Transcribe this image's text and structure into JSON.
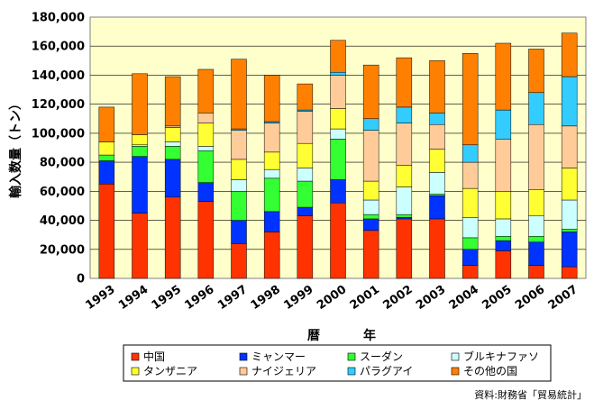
{
  "chart_data": {
    "type": "bar",
    "stacked": true,
    "ylabel": "輸入数量（トン）",
    "xlabel_left": "暦",
    "xlabel_right": "年",
    "ylim": [
      0,
      180000
    ],
    "yticks": [
      "0",
      "20,000",
      "40,000",
      "60,000",
      "80,000",
      "100,000",
      "120,000",
      "140,000",
      "160,000",
      "180,000"
    ],
    "categories": [
      "1993",
      "1994",
      "1995",
      "1996",
      "1997",
      "1998",
      "1999",
      "2000",
      "2001",
      "2002",
      "2003",
      "2004",
      "2005",
      "2006",
      "2007"
    ],
    "plot_background": "#FFFFCC",
    "legend_position": "bottom",
    "source_note": "資料:財務省「貿易統計」",
    "series": [
      {
        "name": "中国",
        "color": "#FF3300",
        "values": [
          65000,
          45000,
          56000,
          53000,
          24000,
          32000,
          43000,
          52000,
          33000,
          41000,
          41000,
          9000,
          19000,
          9000,
          8000
        ]
      },
      {
        "name": "ミャンマー",
        "color": "#0033FF",
        "values": [
          16000,
          39000,
          26000,
          13000,
          16000,
          14000,
          6000,
          16000,
          8000,
          1000,
          16000,
          11000,
          7000,
          16000,
          24000
        ]
      },
      {
        "name": "スーダン",
        "color": "#33FF33",
        "values": [
          4000,
          7000,
          9000,
          22000,
          20000,
          23000,
          18000,
          28000,
          3000,
          2000,
          1000,
          8000,
          3000,
          4000,
          2000
        ]
      },
      {
        "name": "ブルキナファソ",
        "color": "#CCFFFF",
        "values": [
          0,
          1000,
          3000,
          3000,
          8000,
          6000,
          9000,
          7000,
          10000,
          19000,
          15000,
          14000,
          12000,
          14000,
          20000
        ]
      },
      {
        "name": "タンザニア",
        "color": "#FFFF33",
        "values": [
          9000,
          7000,
          10000,
          16000,
          14000,
          12000,
          17000,
          14000,
          13000,
          15000,
          16000,
          20000,
          19000,
          18000,
          22000
        ]
      },
      {
        "name": "ナイジェリア",
        "color": "#FFCC99",
        "values": [
          0,
          0,
          1000,
          7000,
          20000,
          20000,
          22000,
          23000,
          35000,
          29000,
          17000,
          18000,
          36000,
          45000,
          29000
        ]
      },
      {
        "name": "パラグアイ",
        "color": "#33CCFF",
        "values": [
          0,
          0,
          0,
          0,
          1000,
          1000,
          1000,
          2000,
          8000,
          11000,
          8000,
          12000,
          20000,
          22000,
          34000
        ]
      },
      {
        "name": "その他の国",
        "color": "#FF8000",
        "values": [
          24000,
          42000,
          34000,
          30000,
          48000,
          32000,
          18000,
          22000,
          37000,
          34000,
          36000,
          63000,
          46000,
          30000,
          30000
        ]
      }
    ]
  }
}
